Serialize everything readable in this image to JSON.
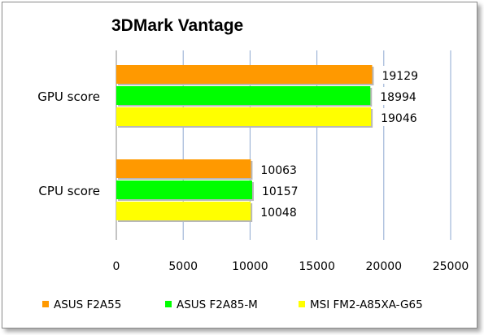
{
  "chart_data": {
    "type": "bar",
    "orientation": "horizontal",
    "title": "3DMark Vantage",
    "categories": [
      "GPU score",
      "CPU score"
    ],
    "series": [
      {
        "name": "ASUS F2A55",
        "color": "#ff9900",
        "values": [
          19129,
          10063
        ]
      },
      {
        "name": "ASUS F2A85-M",
        "color": "#00ff00",
        "values": [
          18994,
          10157
        ]
      },
      {
        "name": "MSI FM2-A85XA-G65",
        "color": "#ffff00",
        "values": [
          19046,
          10048
        ]
      }
    ],
    "xlim": [
      0,
      25000
    ],
    "xticks": [
      "0",
      "5000",
      "10000",
      "15000",
      "20000",
      "25000"
    ],
    "grid": true,
    "legend": "bottom"
  }
}
